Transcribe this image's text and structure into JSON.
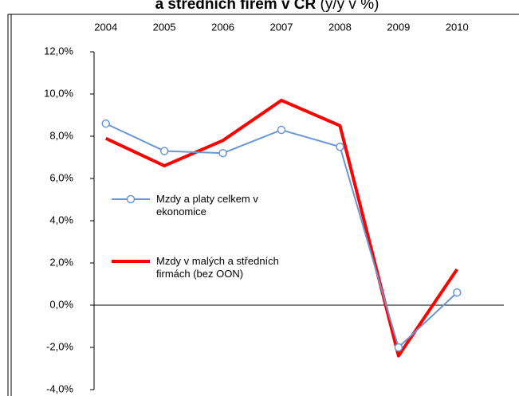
{
  "chart_data": {
    "type": "line",
    "title": "a středních firem v ČR",
    "subtitle": "(y/y v %)",
    "categories": [
      "2004",
      "2005",
      "2006",
      "2007",
      "2008",
      "2009",
      "2010"
    ],
    "series": [
      {
        "name": "Mzdy a platy celkem v ekonomice",
        "color": "#6a97d4",
        "marker": "circle",
        "values": [
          8.6,
          7.3,
          7.2,
          8.3,
          7.5,
          -2.0,
          0.6
        ]
      },
      {
        "name": "Mzdy v malých a středních firmách (bez OON)",
        "color": "#ff0000",
        "values": [
          7.9,
          6.6,
          7.8,
          9.7,
          8.5,
          -2.4,
          1.7
        ]
      }
    ],
    "ylim": [
      -4,
      12
    ],
    "yticks": [
      {
        "value": 12,
        "label": "12,0%"
      },
      {
        "value": 10,
        "label": "10,0%"
      },
      {
        "value": 8,
        "label": "8,0%"
      },
      {
        "value": 6,
        "label": "6,0%"
      },
      {
        "value": 4,
        "label": "4,0%"
      },
      {
        "value": 2,
        "label": "2,0%"
      },
      {
        "value": 0,
        "label": "0,0%"
      },
      {
        "value": -2,
        "label": "-2,0%"
      },
      {
        "value": -4,
        "label": "-4,0%"
      }
    ],
    "grid": false
  }
}
